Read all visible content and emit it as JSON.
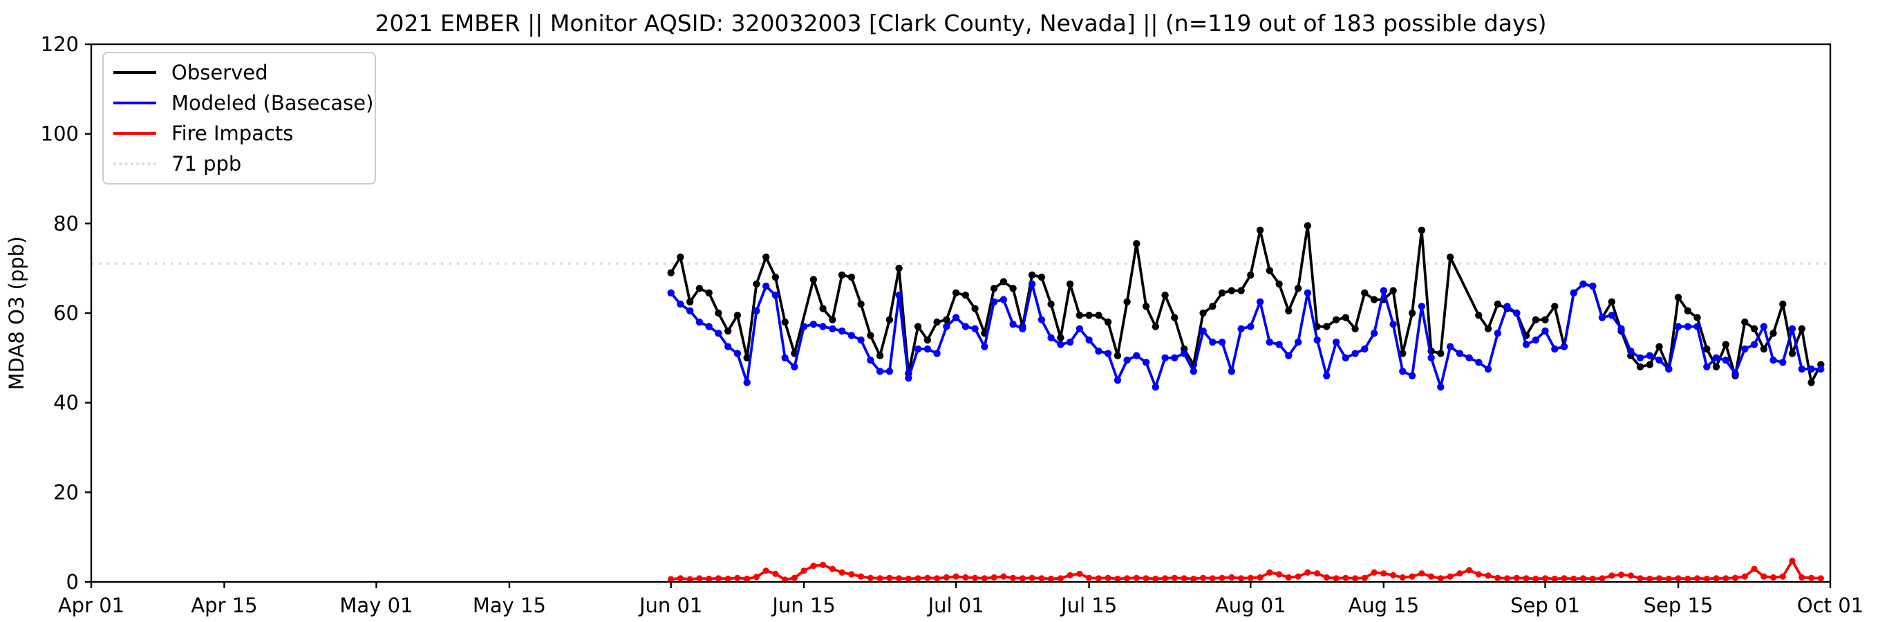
{
  "title": "2021 EMBER || Monitor AQSID: 320032003 [Clark County, Nevada] || (n=119 out of 183 possible days)",
  "legend": {
    "items": [
      {
        "label": "Observed",
        "color": "#000000",
        "style": "solid"
      },
      {
        "label": "Modeled (Basecase)",
        "color": "#0000ff",
        "style": "solid"
      },
      {
        "label": "Fire Impacts",
        "color": "#ff0000",
        "style": "solid"
      },
      {
        "label": "71 ppb",
        "color": "#d9d9d9",
        "style": "dotted"
      }
    ]
  },
  "axes": {
    "ylabel": "MDA8 O3 (ppb)",
    "ylim": [
      0,
      120
    ],
    "y_ticks": [
      0,
      20,
      40,
      60,
      80,
      100,
      120
    ],
    "xlim_days": [
      0,
      183
    ],
    "x_ticks": [
      {
        "label": "Apr 01",
        "day": 0
      },
      {
        "label": "Apr 15",
        "day": 14
      },
      {
        "label": "May 01",
        "day": 30
      },
      {
        "label": "May 15",
        "day": 44
      },
      {
        "label": "Jun 01",
        "day": 61
      },
      {
        "label": "Jun 15",
        "day": 75
      },
      {
        "label": "Jul 01",
        "day": 91
      },
      {
        "label": "Jul 15",
        "day": 105
      },
      {
        "label": "Aug 01",
        "day": 122
      },
      {
        "label": "Aug 15",
        "day": 136
      },
      {
        "label": "Sep 01",
        "day": 153
      },
      {
        "label": "Sep 15",
        "day": 167
      },
      {
        "label": "Oct 01",
        "day": 183
      }
    ]
  },
  "chart_data": {
    "type": "line",
    "title": "2021 EMBER || Monitor AQSID: 320032003 [Clark County, Nevada] || (n=119 out of 183 possible days)",
    "xlabel": "",
    "ylabel": "MDA8 O3 (ppb)",
    "ylim": [
      0,
      120
    ],
    "x_axis_range_days": [
      "Apr 01",
      "Oct 01"
    ],
    "data_start_date": "2021-06-01",
    "data_start_day_offset": 61,
    "threshold": {
      "value": 71,
      "label": "71 ppb",
      "color": "#d9d9d9"
    },
    "grid": false,
    "legend_position": "upper left",
    "series": [
      {
        "name": "Observed",
        "color": "#000000",
        "marker": "circle",
        "values": [
          69,
          72.5,
          62.5,
          65.5,
          64.5,
          60,
          56,
          59.5,
          50,
          66.5,
          72.5,
          68,
          58,
          51,
          null,
          67.5,
          61,
          58.5,
          68.5,
          68,
          62,
          55,
          50.5,
          58.5,
          70,
          46.5,
          57,
          54,
          58,
          58.5,
          64.5,
          64,
          61,
          55.5,
          65.5,
          67,
          65.5,
          57,
          68.5,
          68,
          62,
          54.5,
          66.5,
          59.5,
          59.5,
          59.5,
          58,
          50.5,
          62.5,
          75.5,
          61.5,
          57,
          64,
          59,
          52,
          48.5,
          60,
          61.5,
          64.5,
          65,
          65,
          68.5,
          78.5,
          69.5,
          66.5,
          60.5,
          65.5,
          79.5,
          57,
          57,
          58.5,
          59,
          56.5,
          64.5,
          63,
          63,
          65,
          51,
          60,
          78.5,
          51.5,
          51,
          72.5,
          null,
          null,
          59.5,
          56.5,
          62,
          61,
          60,
          55,
          58.5,
          58.5,
          61.5,
          52.5,
          64.5,
          66.5,
          66,
          59,
          62.5,
          56,
          50.5,
          48,
          48.5,
          52.5,
          47.5,
          63.5,
          60.5,
          59,
          52,
          48,
          53,
          46,
          58,
          56.5,
          52,
          55.5,
          62,
          51,
          56.5,
          44.5,
          48.5
        ]
      },
      {
        "name": "Modeled (Basecase)",
        "color": "#0000ff",
        "marker": "circle",
        "values": [
          64.5,
          62,
          60.5,
          58,
          57,
          55.5,
          52.5,
          51,
          44.5,
          60.5,
          66,
          64,
          50,
          48,
          57,
          57.5,
          57,
          56.5,
          56,
          55,
          54,
          49.5,
          47,
          47,
          64,
          45.5,
          52,
          52,
          51,
          57,
          59,
          57,
          56.5,
          52.5,
          62.5,
          63,
          57.5,
          56.5,
          66.5,
          58.5,
          54.5,
          53,
          53.5,
          56.5,
          54,
          51.5,
          51,
          45,
          49.5,
          50.5,
          49,
          43.5,
          50,
          50,
          51,
          47,
          56,
          53.5,
          53.5,
          47,
          56.5,
          57,
          62.5,
          53.5,
          53,
          50.5,
          53.5,
          64.5,
          54,
          46,
          53.5,
          50,
          51,
          52,
          55.5,
          65,
          57.5,
          47,
          46,
          61.5,
          50,
          43.5,
          52.5,
          51,
          50,
          49,
          47.5,
          55.5,
          61.5,
          60,
          53,
          54,
          56,
          52,
          52.5,
          64.5,
          66.5,
          66,
          59,
          59.5,
          56.5,
          51.5,
          50,
          50.5,
          49.5,
          47.5,
          57,
          57,
          57,
          48,
          50,
          49.5,
          46.5,
          52,
          53,
          57,
          49.5,
          49,
          56.5,
          47.5,
          47.5,
          47.5
        ]
      },
      {
        "name": "Fire Impacts",
        "color": "#ff0000",
        "marker": "circle",
        "values": [
          0.6,
          0.8,
          0.6,
          0.8,
          0.7,
          0.8,
          0.7,
          0.9,
          0.7,
          1.1,
          2.5,
          1.8,
          0.5,
          0.9,
          2.5,
          3.6,
          3.8,
          2.9,
          2.1,
          1.7,
          1.2,
          0.9,
          0.8,
          0.9,
          0.8,
          0.7,
          0.8,
          0.9,
          0.8,
          1.0,
          1.2,
          1.0,
          0.9,
          0.8,
          1.0,
          1.2,
          0.9,
          0.8,
          0.9,
          0.8,
          0.7,
          0.8,
          1.5,
          1.8,
          0.9,
          0.8,
          0.9,
          0.7,
          0.8,
          0.9,
          0.8,
          0.7,
          0.8,
          0.9,
          0.8,
          0.7,
          0.9,
          0.8,
          0.9,
          1.0,
          0.8,
          0.9,
          1.0,
          2.1,
          1.7,
          1.0,
          1.2,
          2.1,
          1.9,
          1.0,
          0.8,
          0.9,
          0.8,
          0.9,
          2.1,
          1.9,
          1.5,
          1.0,
          1.2,
          1.9,
          1.2,
          0.8,
          1.2,
          1.9,
          2.6,
          1.7,
          1.4,
          0.9,
          0.8,
          0.9,
          0.8,
          0.7,
          0.8,
          0.7,
          0.8,
          0.7,
          0.8,
          0.7,
          0.8,
          1.4,
          1.6,
          1.4,
          0.8,
          0.7,
          0.8,
          0.7,
          0.8,
          0.7,
          0.8,
          0.7,
          0.8,
          0.8,
          0.9,
          1.2,
          2.9,
          1.2,
          1.0,
          1.2,
          4.7,
          1.0,
          0.9,
          0.8
        ]
      }
    ]
  }
}
